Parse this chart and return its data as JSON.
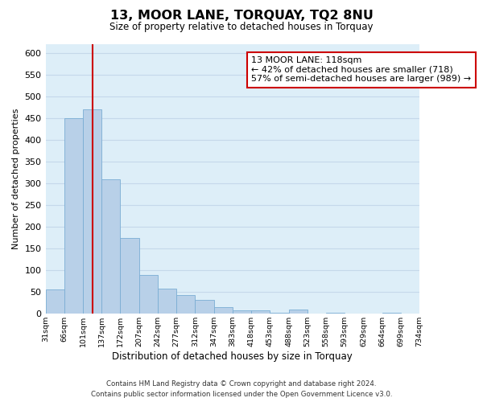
{
  "title": "13, MOOR LANE, TORQUAY, TQ2 8NU",
  "subtitle": "Size of property relative to detached houses in Torquay",
  "xlabel": "Distribution of detached houses by size in Torquay",
  "ylabel": "Number of detached properties",
  "bar_values": [
    55,
    450,
    470,
    310,
    175,
    90,
    58,
    42,
    32,
    15,
    7,
    8,
    3,
    9,
    0,
    2,
    0,
    0,
    2,
    1
  ],
  "bar_labels": [
    "31sqm",
    "66sqm",
    "101sqm",
    "137sqm",
    "172sqm",
    "207sqm",
    "242sqm",
    "277sqm",
    "312sqm",
    "347sqm",
    "383sqm",
    "418sqm",
    "453sqm",
    "488sqm",
    "523sqm",
    "558sqm",
    "593sqm",
    "629sqm",
    "664sqm",
    "699sqm",
    "734sqm"
  ],
  "bar_color": "#b8d0e8",
  "bar_edge_color": "#7aadd4",
  "reference_line_color": "#cc0000",
  "reference_line_x": 2.5,
  "annotation_text": "13 MOOR LANE: 118sqm\n← 42% of detached houses are smaller (718)\n57% of semi-detached houses are larger (989) →",
  "annotation_box_facecolor": "white",
  "annotation_box_edgecolor": "#cc0000",
  "ylim": [
    0,
    620
  ],
  "yticks": [
    0,
    50,
    100,
    150,
    200,
    250,
    300,
    350,
    400,
    450,
    500,
    550,
    600
  ],
  "grid_color": "#c5d8ea",
  "background_color": "#ddeef8",
  "footer_text": "Contains HM Land Registry data © Crown copyright and database right 2024.\nContains public sector information licensed under the Open Government Licence v3.0."
}
